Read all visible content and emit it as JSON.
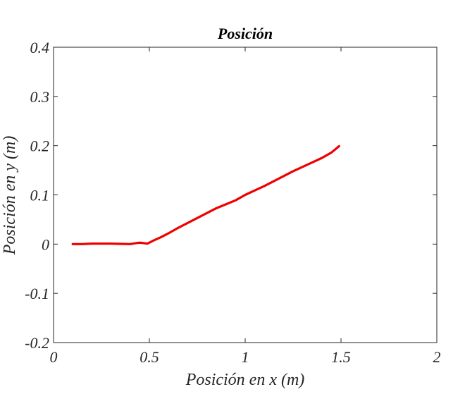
{
  "colors": {
    "series": "#ee0000",
    "axis": "#262626"
  },
  "chart_data": {
    "type": "line",
    "title": "Posición",
    "xlabel": "Posición en x (m)",
    "ylabel": "Posición en y (m)",
    "xlim": [
      0,
      2
    ],
    "ylim": [
      -0.2,
      0.4
    ],
    "xticks": [
      0,
      0.5,
      1,
      1.5,
      2
    ],
    "xtick_labels": [
      "0",
      "0.5",
      "1",
      "1.5",
      "2"
    ],
    "yticks": [
      -0.2,
      -0.1,
      0,
      0.1,
      0.2,
      0.3,
      0.4
    ],
    "ytick_labels": [
      "-0.2",
      "-0.1",
      "0",
      "0.1",
      "0.2",
      "0.3",
      "0.4"
    ],
    "grid": false,
    "legend": "none",
    "series": [
      {
        "color": "#ee0000",
        "x": [
          0.1,
          0.15,
          0.2,
          0.25,
          0.3,
          0.35,
          0.4,
          0.43,
          0.45,
          0.47,
          0.49,
          0.52,
          0.56,
          0.6,
          0.65,
          0.7,
          0.75,
          0.8,
          0.85,
          0.9,
          0.95,
          1.0,
          1.05,
          1.1,
          1.15,
          1.2,
          1.25,
          1.3,
          1.35,
          1.4,
          1.45,
          1.49
        ],
        "y": [
          0.0,
          0.0,
          0.001,
          0.001,
          0.001,
          0.0005,
          0.0,
          0.002,
          0.003,
          0.002,
          0.001,
          0.007,
          0.014,
          0.022,
          0.033,
          0.043,
          0.053,
          0.063,
          0.073,
          0.081,
          0.089,
          0.1,
          0.109,
          0.118,
          0.128,
          0.138,
          0.148,
          0.157,
          0.166,
          0.175,
          0.186,
          0.199
        ]
      }
    ]
  }
}
